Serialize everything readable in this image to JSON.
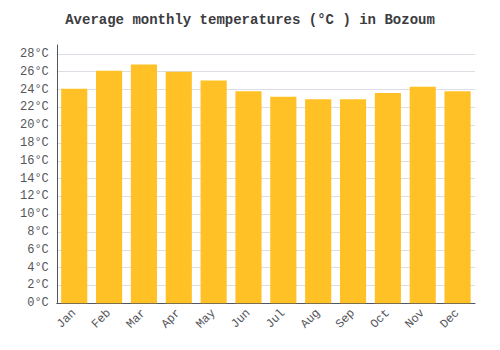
{
  "chart_data": {
    "type": "bar",
    "title": "Average monthly temperatures (°C ) in Bozoum",
    "categories": [
      "Jan",
      "Feb",
      "Mar",
      "Apr",
      "May",
      "Jun",
      "Jul",
      "Aug",
      "Sep",
      "Oct",
      "Nov",
      "Dec"
    ],
    "values": [
      24.1,
      26.1,
      26.8,
      26.0,
      25.0,
      23.8,
      23.2,
      22.9,
      22.9,
      23.6,
      24.3,
      23.8
    ],
    "color": "#FFC125",
    "ylim": [
      0,
      29
    ],
    "yticks": [
      {
        "value": 0,
        "label": "0°C"
      },
      {
        "value": 2,
        "label": "2°C"
      },
      {
        "value": 4,
        "label": "4°C"
      },
      {
        "value": 6,
        "label": "6°C"
      },
      {
        "value": 8,
        "label": "8°C"
      },
      {
        "value": 10,
        "label": "10°C"
      },
      {
        "value": 12,
        "label": "12°C"
      },
      {
        "value": 14,
        "label": "14°C"
      },
      {
        "value": 16,
        "label": "16°C"
      },
      {
        "value": 18,
        "label": "18°C"
      },
      {
        "value": 20,
        "label": "20°C"
      },
      {
        "value": 22,
        "label": "22°C"
      },
      {
        "value": 24,
        "label": "24°C"
      },
      {
        "value": 26,
        "label": "26°C"
      },
      {
        "value": 28,
        "label": "28°C"
      }
    ],
    "grid": true
  }
}
